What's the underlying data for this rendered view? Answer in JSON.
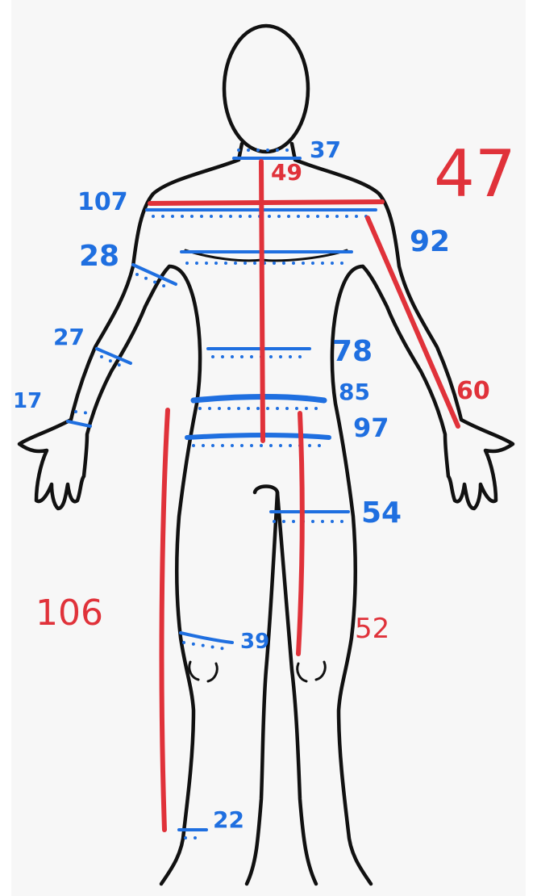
{
  "colors": {
    "background": "#f7f7f7",
    "outline": "#111111",
    "circumference_ink": "#1f6fe0",
    "length_ink": "#e0323a"
  },
  "measurements": {
    "circumference": {
      "neck": "37",
      "shoulders": "107",
      "upper_arm": "28",
      "forearm": "27",
      "wrist": "17",
      "arm_length": "92",
      "waist": "78",
      "low_waist": "85",
      "hips": "97",
      "thigh": "54",
      "knee": "39",
      "ankle": "22"
    },
    "length": {
      "neck_to_waist": "49",
      "top_right": "47",
      "shoulder_to_wrist": "60",
      "outseam": "106",
      "inseam": "52"
    }
  }
}
